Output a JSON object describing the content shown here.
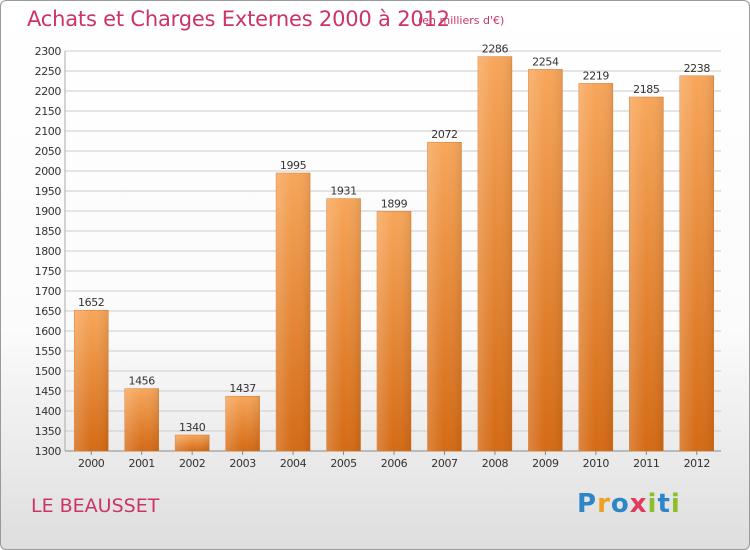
{
  "title": "Achats et Charges Externes 2000 à 2012",
  "unit_label": "(en milliers d'€)",
  "place": "LE BEAUSSET",
  "logo": {
    "text": "Proxiti",
    "letters": [
      {
        "char": "P",
        "color": "#2e86c8"
      },
      {
        "char": "r",
        "color": "#f0a020"
      },
      {
        "char": "o",
        "color": "#2e86c8"
      },
      {
        "char": "x",
        "color": "#e23a5a"
      },
      {
        "char": "i",
        "color": "#8cbf2a"
      },
      {
        "char": "t",
        "color": "#2e86c8"
      },
      {
        "char": "i",
        "color": "#8cbf2a"
      }
    ]
  },
  "colors": {
    "title": "#cc3366",
    "bar_top": "#f7a65a",
    "bar_bottom": "#d46a14",
    "grid": "#cccccc"
  },
  "chart_data": {
    "type": "bar",
    "title": "Achats et Charges Externes 2000 à 2012",
    "xlabel": "",
    "ylabel": "",
    "ylim": [
      1300,
      2300
    ],
    "ytick_step": 50,
    "grid": true,
    "categories": [
      "2000",
      "2001",
      "2002",
      "2003",
      "2004",
      "2005",
      "2006",
      "2007",
      "2008",
      "2009",
      "2010",
      "2011",
      "2012"
    ],
    "values": [
      1652,
      1456,
      1340,
      1437,
      1995,
      1931,
      1899,
      2072,
      2286,
      2254,
      2219,
      2185,
      2238
    ]
  }
}
